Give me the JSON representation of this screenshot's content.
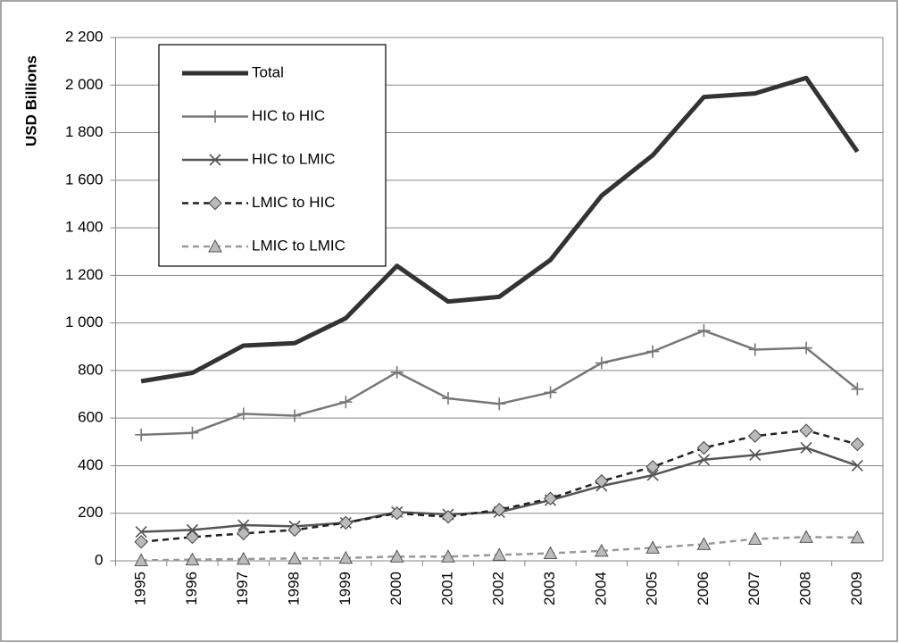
{
  "chart_data": {
    "type": "line",
    "ylabel": "USD Billions",
    "categories": [
      "1995",
      "1996",
      "1997",
      "1998",
      "1999",
      "2000",
      "2001",
      "2002",
      "2003",
      "2004",
      "2005",
      "2006",
      "2007",
      "2008",
      "2009"
    ],
    "series": [
      {
        "name": "Total",
        "color": "#333333",
        "width": 5,
        "dash": false,
        "marker": "none",
        "values": [
          755,
          790,
          905,
          915,
          1020,
          1240,
          1090,
          1110,
          1265,
          1535,
          1705,
          1950,
          1965,
          2030,
          1720
        ]
      },
      {
        "name": "HIC to HIC",
        "color": "#777777",
        "width": 2.5,
        "dash": false,
        "marker": "plus",
        "values": [
          530,
          538,
          618,
          610,
          668,
          793,
          683,
          660,
          708,
          832,
          880,
          968,
          888,
          895,
          722
        ]
      },
      {
        "name": "HIC to LMIC",
        "color": "#555555",
        "width": 2.5,
        "dash": false,
        "marker": "cross",
        "values": [
          122,
          130,
          150,
          145,
          160,
          205,
          195,
          205,
          255,
          315,
          360,
          425,
          445,
          475,
          400
        ]
      },
      {
        "name": "LMIC to HIC",
        "color": "#222222",
        "width": 2.5,
        "dash": true,
        "marker": "diamond",
        "values": [
          80,
          100,
          115,
          130,
          160,
          200,
          185,
          215,
          262,
          335,
          395,
          475,
          525,
          548,
          490
        ]
      },
      {
        "name": "LMIC to LMIC",
        "color": "#999999",
        "width": 2.5,
        "dash": true,
        "marker": "triangle",
        "values": [
          2,
          5,
          8,
          10,
          12,
          18,
          18,
          25,
          32,
          42,
          55,
          70,
          92,
          100,
          98
        ]
      }
    ],
    "ylim": [
      0,
      2200
    ],
    "yticks": [
      0,
      200,
      400,
      600,
      800,
      {
        "value": 1000,
        "label": "1 000"
      },
      {
        "value": 1200,
        "label": "1 200"
      },
      {
        "value": 1400,
        "label": "1 400"
      },
      {
        "value": 1600,
        "label": "1 600"
      },
      {
        "value": 1800,
        "label": "1 800"
      },
      {
        "value": 2000,
        "label": "2 000"
      },
      {
        "value": 2200,
        "label": "2 200"
      }
    ],
    "grid": true,
    "legend": "top-left"
  }
}
